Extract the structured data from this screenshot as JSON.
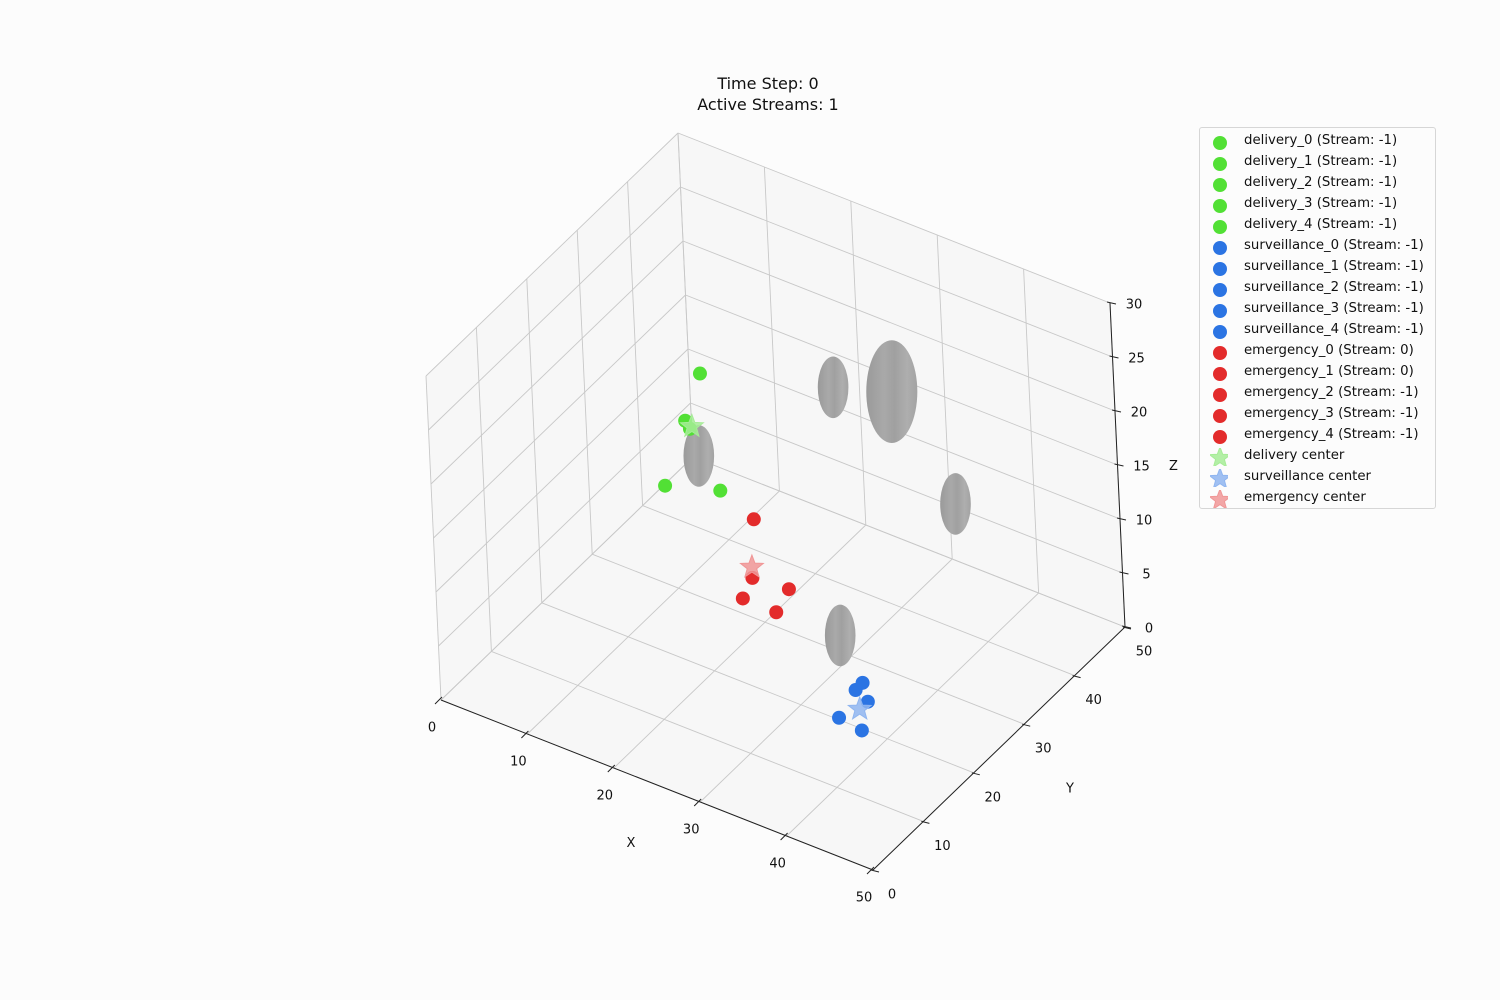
{
  "chart_data": {
    "type": "scatter3d",
    "title": "Time Step: 0",
    "subtitle": "Active Streams: 1",
    "xlabel": "X",
    "ylabel": "Y",
    "zlabel": "Z",
    "xlim": [
      0,
      50
    ],
    "ylim": [
      0,
      50
    ],
    "zlim": [
      0,
      30
    ],
    "xticks": [
      "0",
      "10",
      "20",
      "30",
      "40",
      "50"
    ],
    "yticks": [
      "0",
      "10",
      "20",
      "30",
      "40",
      "50"
    ],
    "zticks": [
      "0",
      "5",
      "10",
      "15",
      "20",
      "25",
      "30"
    ],
    "grid": true,
    "legend_position": "right",
    "colors": {
      "delivery": "#52e035",
      "surveillance": "#2b74e3",
      "emergency": "#e32b2b",
      "delivery_center": "#a6ec97",
      "surveillance_center": "#8fb5f0",
      "emergency_center": "#f09696",
      "obstacle": "#a5a5a5"
    },
    "series": [
      {
        "name": "delivery_0 (Stream: -1)",
        "group": "delivery",
        "marker": "circle",
        "point": [
          5,
          44,
          12
        ]
      },
      {
        "name": "delivery_1 (Stream: -1)",
        "group": "delivery",
        "marker": "circle",
        "point": [
          3,
          44,
          7
        ]
      },
      {
        "name": "delivery_2 (Stream: -1)",
        "group": "delivery",
        "marker": "circle",
        "point": [
          8,
          42,
          3
        ]
      },
      {
        "name": "delivery_3 (Stream: -1)",
        "group": "delivery",
        "marker": "circle",
        "point": [
          6,
          40,
          9
        ]
      },
      {
        "name": "delivery_4 (Stream: -1)",
        "group": "delivery",
        "marker": "circle",
        "point": [
          4,
          38,
          4
        ]
      },
      {
        "name": "surveillance_0 (Stream: -1)",
        "group": "surveillance",
        "marker": "circle",
        "point": [
          40,
          11,
          6
        ]
      },
      {
        "name": "surveillance_1 (Stream: -1)",
        "group": "surveillance",
        "marker": "circle",
        "point": [
          42,
          12,
          5
        ]
      },
      {
        "name": "surveillance_2 (Stream: -1)",
        "group": "surveillance",
        "marker": "circle",
        "point": [
          41,
          15,
          6
        ]
      },
      {
        "name": "surveillance_3 (Stream: -1)",
        "group": "surveillance",
        "marker": "circle",
        "point": [
          39,
          16,
          6
        ]
      },
      {
        "name": "surveillance_4 (Stream: -1)",
        "group": "surveillance",
        "marker": "circle",
        "point": [
          38,
          19,
          5
        ]
      },
      {
        "name": "emergency_0 (Stream: 0)",
        "group": "emergency",
        "marker": "circle",
        "point": [
          18,
          32,
          8
        ]
      },
      {
        "name": "emergency_1 (Stream: 0)",
        "group": "emergency",
        "marker": "circle",
        "point": [
          20,
          28,
          5
        ]
      },
      {
        "name": "emergency_2 (Stream: -1)",
        "group": "emergency",
        "marker": "circle",
        "point": [
          23,
          30,
          4
        ]
      },
      {
        "name": "emergency_3 (Stream: -1)",
        "group": "emergency",
        "marker": "circle",
        "point": [
          22,
          29,
          2
        ]
      },
      {
        "name": "emergency_4 (Stream: -1)",
        "group": "emergency",
        "marker": "circle",
        "point": [
          20,
          26,
          4
        ]
      },
      {
        "name": "delivery center",
        "group": "delivery_center",
        "marker": "star",
        "point": [
          5,
          42,
          8
        ]
      },
      {
        "name": "surveillance center",
        "group": "surveillance_center",
        "marker": "star",
        "point": [
          40,
          15,
          5
        ]
      },
      {
        "name": "emergency center",
        "group": "emergency_center",
        "marker": "star",
        "point": [
          20,
          28,
          6
        ]
      }
    ],
    "obstacles": [
      {
        "center": [
          10,
          35,
          10
        ],
        "radius": 3
      },
      {
        "center": [
          20,
          45,
          15
        ],
        "radius": 3
      },
      {
        "center": [
          35,
          20,
          8
        ],
        "radius": 3
      },
      {
        "center": [
          30,
          40,
          20
        ],
        "radius": 5
      },
      {
        "center": [
          40,
          35,
          15
        ],
        "radius": 3
      }
    ]
  }
}
